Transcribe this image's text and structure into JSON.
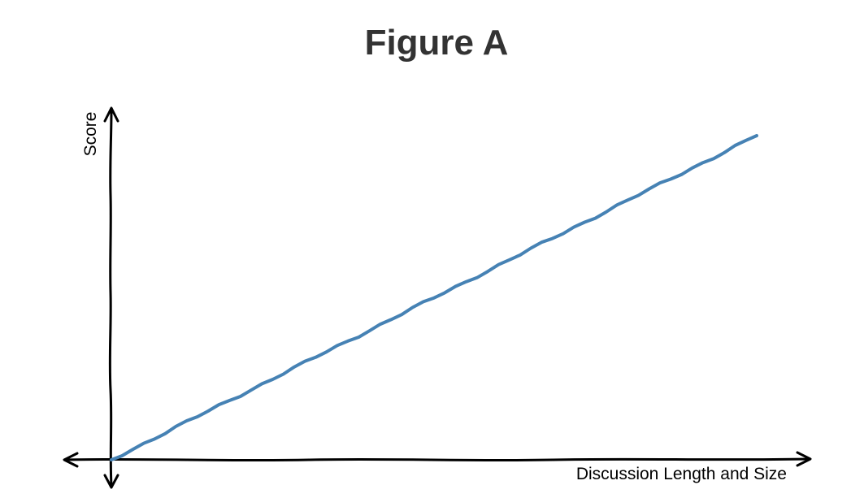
{
  "chart_data": {
    "type": "line",
    "title": "Figure A",
    "xlabel": "Discussion Length and Size",
    "ylabel": "Score",
    "grid": false,
    "legend": "none",
    "axis_ticks": "none",
    "style": "hand-drawn (xkcd)",
    "series_color": "#4682b4",
    "axis_color": "#000000",
    "xlim": [
      0,
      1
    ],
    "ylim": [
      0,
      1
    ],
    "series": [
      {
        "x": [
          0,
          0.1,
          0.2,
          0.3,
          0.4,
          0.5,
          0.6,
          0.7,
          0.8,
          0.9,
          1.0
        ],
        "y": [
          0,
          0.1,
          0.2,
          0.3,
          0.4,
          0.5,
          0.6,
          0.7,
          0.8,
          0.9,
          1.0
        ]
      }
    ]
  }
}
